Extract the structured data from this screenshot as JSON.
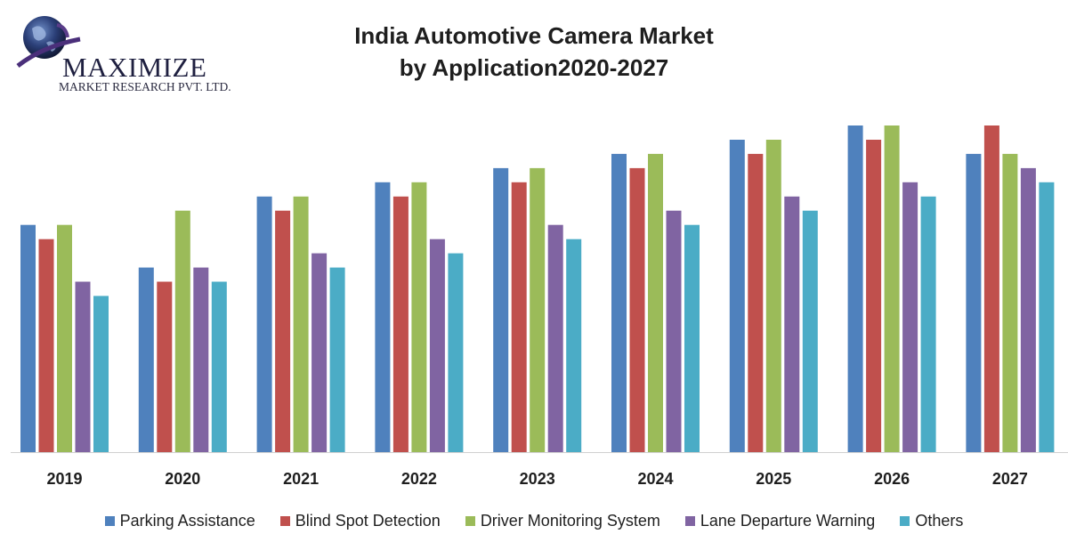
{
  "brand": {
    "name": "MAXIMIZE",
    "subtitle": "MARKET RESEARCH PVT. LTD."
  },
  "chart_data": {
    "type": "bar",
    "title_lines": [
      "India Automotive Camera Market",
      "by Application2020-2027"
    ],
    "xlabel": "",
    "ylabel": "",
    "ylim": [
      0,
      23
    ],
    "grid": false,
    "legend_position": "bottom",
    "categories": [
      "2019",
      "2020",
      "2021",
      "2022",
      "2023",
      "2024",
      "2025",
      "2026",
      "2027"
    ],
    "series": [
      {
        "name": "Parking Assistance",
        "color": "#4f81bd",
        "values": [
          16,
          13,
          18,
          19,
          20,
          21,
          22,
          23,
          21
        ]
      },
      {
        "name": "Blind Spot Detection",
        "color": "#c0504d",
        "values": [
          15,
          12,
          17,
          18,
          19,
          20,
          21,
          22,
          23
        ]
      },
      {
        "name": "Driver Monitoring System",
        "color": "#9bbb59",
        "values": [
          16,
          17,
          18,
          19,
          20,
          21,
          22,
          23,
          21
        ]
      },
      {
        "name": "Lane Departure Warning",
        "color": "#8064a2",
        "values": [
          12,
          13,
          14,
          15,
          16,
          17,
          18,
          19,
          20
        ]
      },
      {
        "name": "Others",
        "color": "#4bacc6",
        "values": [
          11,
          12,
          13,
          14,
          15,
          16,
          17,
          18,
          19
        ]
      }
    ]
  }
}
